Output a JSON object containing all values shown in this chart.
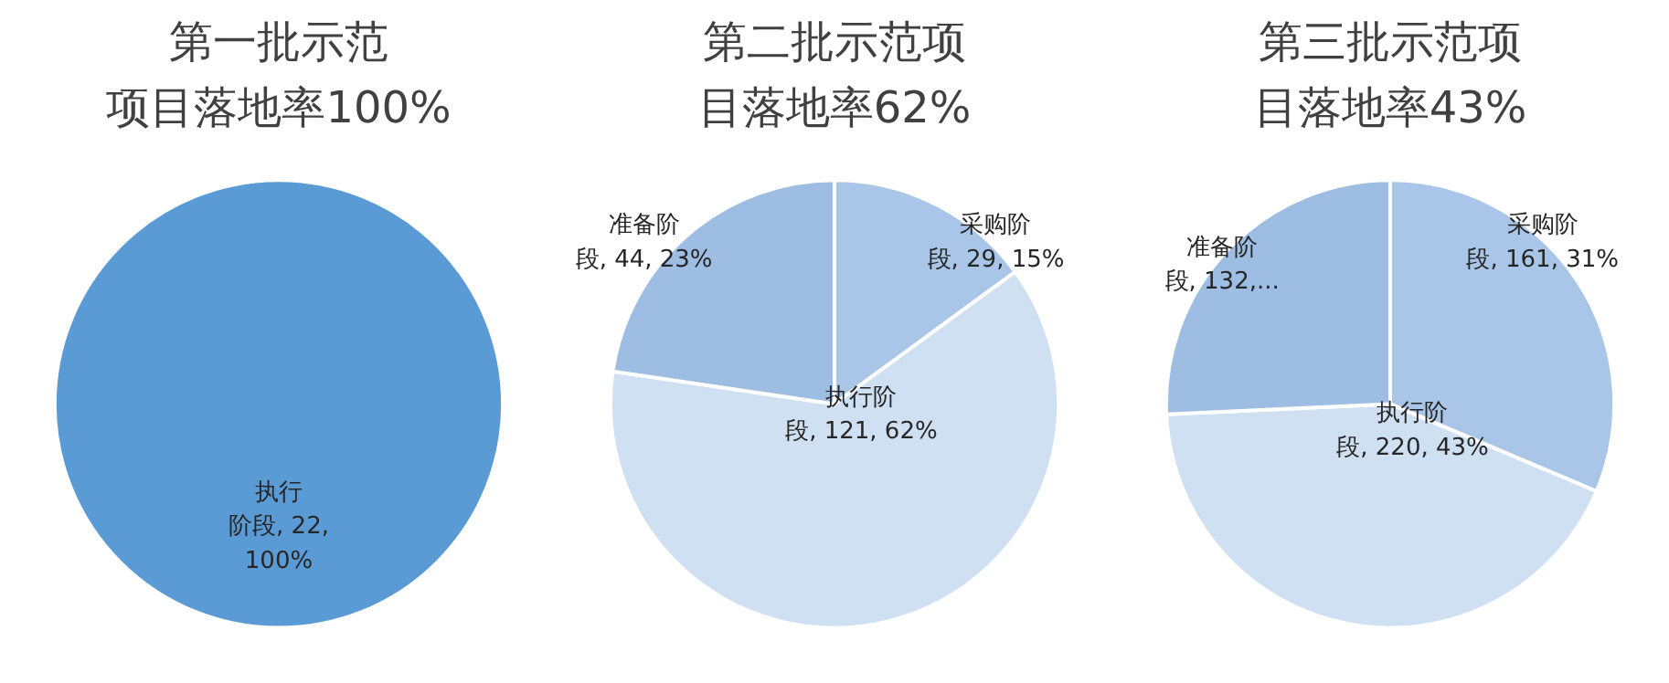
{
  "chart_data": [
    {
      "type": "pie",
      "title": "第一批示范项目落地率100%",
      "categories": [
        "执行阶段"
      ],
      "values": [
        22
      ],
      "colors": [
        "#5b9bd5"
      ],
      "value_labels": [
        "22, 100%"
      ]
    },
    {
      "type": "pie",
      "title": "第二批示范项目落地率62%",
      "categories": [
        "采购阶段",
        "执行阶段",
        "准备阶段"
      ],
      "values": [
        29,
        121,
        44
      ],
      "colors": [
        "#a9c6e8",
        "#cfe0f3",
        "#9dbde3"
      ],
      "value_labels": [
        "29, 15%",
        "121, 62%",
        "44, 23%"
      ]
    },
    {
      "type": "pie",
      "title": "第三批示范项目落地率43%",
      "categories": [
        "采购阶段",
        "执行阶段",
        "准备阶段"
      ],
      "values": [
        161,
        220,
        132
      ],
      "colors": [
        "#a9c6e8",
        "#cfe0f3",
        "#9dbde3"
      ],
      "value_labels": [
        "161, 31%",
        "220, 43%",
        "132,..."
      ]
    }
  ]
}
